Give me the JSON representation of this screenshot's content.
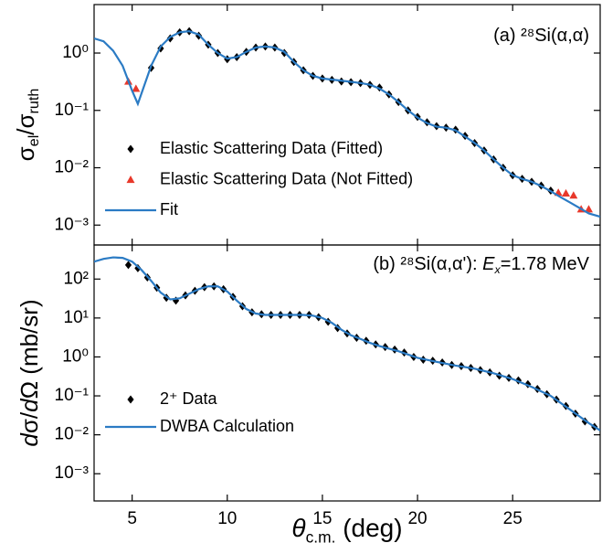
{
  "chart_data": [
    {
      "type": "line",
      "log_y": true,
      "xtick_labels": false,
      "legend_loc": "lower left",
      "annotation": [
        {
          "text": "(a) ²⁸Si(α,α)"
        }
      ],
      "ylabel": [
        {
          "text": "σ"
        },
        {
          "text": "el",
          "sub": true
        },
        {
          "text": "/σ"
        },
        {
          "text": "ruth",
          "sub": true
        }
      ],
      "xlim": [
        3,
        29.6
      ],
      "ylim": [
        0.00045,
        7
      ],
      "xticks": [
        5,
        10,
        15,
        20,
        25
      ],
      "yticks": [
        {
          "value": 1,
          "label": "10⁰"
        },
        {
          "value": 0.1,
          "label": "10⁻¹"
        },
        {
          "value": 0.01,
          "label": "10⁻²"
        },
        {
          "value": 0.001,
          "label": "10⁻³"
        }
      ],
      "series": [
        {
          "name": "Elastic Scattering Data (Fitted)",
          "color": "#000000",
          "style": "marker",
          "marker": "diamond",
          "x": [
            6.0,
            6.5,
            7.0,
            7.5,
            8.0,
            8.5,
            9.0,
            9.5,
            10.0,
            10.5,
            11.0,
            11.5,
            12.0,
            12.5,
            13.0,
            13.5,
            14.0,
            14.5,
            15.0,
            15.5,
            16.0,
            16.5,
            17.0,
            17.5,
            18.0,
            18.5,
            19.0,
            19.5,
            20.0,
            20.5,
            21.0,
            21.5,
            22.0,
            22.5,
            23.0,
            23.5,
            24.0,
            24.5,
            25.0,
            25.5,
            26.0,
            26.5,
            27.0
          ],
          "values": [
            0.55,
            1.2,
            1.8,
            2.3,
            2.4,
            2.0,
            1.4,
            1.0,
            0.78,
            0.85,
            1.05,
            1.25,
            1.3,
            1.25,
            1.0,
            0.7,
            0.5,
            0.4,
            0.36,
            0.34,
            0.32,
            0.31,
            0.3,
            0.28,
            0.25,
            0.19,
            0.14,
            0.1,
            0.077,
            0.062,
            0.053,
            0.05,
            0.046,
            0.036,
            0.027,
            0.02,
            0.014,
            0.01,
            0.0074,
            0.0064,
            0.0057,
            0.0049,
            0.004
          ]
        },
        {
          "name": "Elastic Scattering Data (Not Fitted)",
          "color": "#e8382a",
          "style": "marker",
          "marker": "triangle",
          "x": [
            4.8,
            5.2,
            27.4,
            27.8,
            28.2,
            28.6,
            29.0
          ],
          "values": [
            0.32,
            0.24,
            0.0037,
            0.0036,
            0.0033,
            0.0019,
            0.0019
          ]
        },
        {
          "name": "Fit",
          "color": "#2b7bc4",
          "style": "line",
          "x": [
            3,
            3.5,
            4,
            4.5,
            5,
            5.3,
            5.6,
            6,
            6.5,
            7,
            7.5,
            8,
            8.5,
            9,
            9.5,
            10,
            10.5,
            11,
            11.5,
            12,
            12.5,
            13,
            13.5,
            14,
            14.5,
            15,
            16,
            17,
            17.5,
            18,
            18.5,
            19,
            19.5,
            20,
            20.5,
            21,
            21.5,
            22,
            22.5,
            23,
            23.5,
            24,
            24.5,
            25,
            25.5,
            26,
            26.5,
            27,
            27.5,
            28,
            28.5,
            29,
            29.6
          ],
          "values": [
            1.8,
            1.6,
            1.1,
            0.6,
            0.22,
            0.13,
            0.25,
            0.6,
            1.3,
            1.9,
            2.3,
            2.4,
            2.1,
            1.4,
            1.0,
            0.8,
            0.85,
            1.05,
            1.25,
            1.3,
            1.25,
            1.05,
            0.7,
            0.5,
            0.4,
            0.36,
            0.33,
            0.3,
            0.28,
            0.24,
            0.19,
            0.14,
            0.1,
            0.075,
            0.06,
            0.052,
            0.05,
            0.045,
            0.035,
            0.027,
            0.02,
            0.014,
            0.01,
            0.0074,
            0.0064,
            0.0057,
            0.0048,
            0.0039,
            0.0031,
            0.0025,
            0.002,
            0.0016,
            0.0014
          ]
        }
      ]
    },
    {
      "type": "line",
      "log_y": true,
      "legend_loc": "lower left",
      "annotation": [
        {
          "text": "(b) ²⁸Si(α,α'): "
        },
        {
          "text": "E",
          "italic": true
        },
        {
          "text": "x",
          "sub": true,
          "italic": true
        },
        {
          "text": "=1.78 MeV"
        }
      ],
      "ylabel": [
        {
          "text": "d",
          "italic": true
        },
        {
          "text": "σ/"
        },
        {
          "text": "d",
          "italic": true
        },
        {
          "text": "Ω (mb/sr)"
        }
      ],
      "xlabel": [
        {
          "text": "θ",
          "italic": true
        },
        {
          "text": "c.m.",
          "sub": true
        },
        {
          "text": " (deg)"
        }
      ],
      "xlim": [
        3,
        29.6
      ],
      "ylim": [
        0.0002,
        750
      ],
      "xticks": [
        5,
        10,
        15,
        20,
        25
      ],
      "yticks": [
        {
          "value": 100,
          "label": "10²"
        },
        {
          "value": 10,
          "label": "10¹"
        },
        {
          "value": 1,
          "label": "10⁰"
        },
        {
          "value": 0.1,
          "label": "10⁻¹"
        },
        {
          "value": 0.01,
          "label": "10⁻²"
        },
        {
          "value": 0.001,
          "label": "10⁻³"
        }
      ],
      "series": [
        {
          "name": "2⁺ Data",
          "color": "#000000",
          "style": "marker",
          "marker": "diamond",
          "x": [
            4.8,
            5.3,
            5.8,
            6.3,
            6.8,
            7.3,
            7.8,
            8.3,
            8.8,
            9.3,
            9.8,
            10.3,
            10.8,
            11.3,
            11.8,
            12.3,
            12.8,
            13.3,
            13.8,
            14.3,
            14.8,
            15.3,
            15.8,
            16.3,
            16.8,
            17.3,
            17.8,
            18.3,
            18.8,
            19.3,
            19.8,
            20.3,
            20.8,
            21.3,
            21.8,
            22.3,
            22.8,
            23.3,
            23.8,
            24.3,
            24.8,
            25.3,
            25.8,
            26.3,
            26.8,
            27.3,
            27.8,
            28.3,
            28.8,
            29.3
          ],
          "values": [
            230,
            190,
            110,
            60,
            33,
            28,
            38,
            50,
            62,
            65,
            55,
            35,
            20,
            14,
            12.5,
            12,
            12,
            12,
            12,
            12,
            10.5,
            8,
            5.5,
            4,
            3.1,
            2.6,
            2.1,
            1.8,
            1.55,
            1.3,
            1.0,
            0.85,
            0.8,
            0.72,
            0.62,
            0.58,
            0.52,
            0.46,
            0.4,
            0.33,
            0.29,
            0.25,
            0.2,
            0.15,
            0.11,
            0.08,
            0.055,
            0.035,
            0.022,
            0.016
          ]
        },
        {
          "name": "DWBA Calculation",
          "color": "#2b7bc4",
          "style": "line",
          "x": [
            3,
            3.5,
            4,
            4.5,
            5,
            5.5,
            6,
            6.5,
            7,
            7.5,
            8,
            8.5,
            9,
            9.5,
            10,
            10.5,
            11,
            11.5,
            12,
            13,
            14,
            14.5,
            15,
            15.5,
            16,
            16.5,
            17,
            17.5,
            18,
            19,
            20,
            21,
            22,
            23,
            24,
            25,
            26,
            27,
            28,
            29,
            29.6
          ],
          "values": [
            280,
            330,
            360,
            350,
            280,
            170,
            90,
            45,
            30,
            32,
            42,
            55,
            65,
            65,
            48,
            28,
            17,
            13,
            12,
            12,
            12,
            11.5,
            10,
            7.5,
            5,
            3.6,
            2.9,
            2.3,
            1.9,
            1.4,
            0.95,
            0.75,
            0.6,
            0.5,
            0.38,
            0.27,
            0.17,
            0.1,
            0.045,
            0.02,
            0.013
          ]
        }
      ]
    }
  ]
}
